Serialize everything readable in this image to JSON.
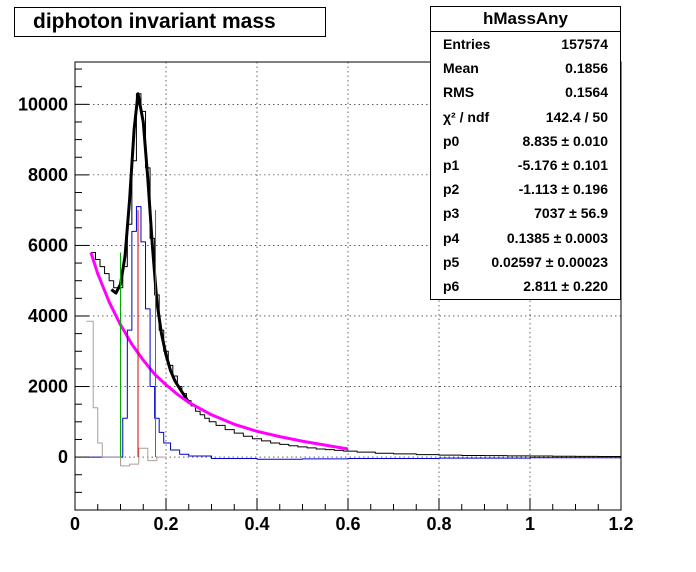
{
  "title": "diphoton invariant mass",
  "stats": {
    "name": "hMassAny",
    "rows": [
      {
        "label": "Entries",
        "value": "157574"
      },
      {
        "label": "Mean",
        "value": "0.1856"
      },
      {
        "label": "RMS",
        "value": "0.1564"
      },
      {
        "label": "χ² / ndf",
        "value": "142.4 / 50"
      },
      {
        "label": "p0",
        "value": "8.835 ± 0.010"
      },
      {
        "label": "p1",
        "value": "-5.176 ± 0.101"
      },
      {
        "label": "p2",
        "value": "-1.113 ± 0.196"
      },
      {
        "label": "p3",
        "value": "7037 ± 56.9"
      },
      {
        "label": "p4",
        "value": "0.1385 ± 0.0003"
      },
      {
        "label": "p5",
        "value": "0.02597 ± 0.00023"
      },
      {
        "label": "p6",
        "value": "2.811 ± 0.220"
      }
    ]
  },
  "chart_data": {
    "type": "line",
    "title": "diphoton invariant mass",
    "xlim": [
      0,
      1.2
    ],
    "ylim": [
      -1500,
      11200
    ],
    "grid": true,
    "x_ticks": [
      0,
      0.2,
      0.4,
      0.6,
      0.8,
      1,
      1.2
    ],
    "x_tick_labels": [
      "0",
      "0.2",
      "0.4",
      "0.6",
      "0.8",
      "1",
      "1.2"
    ],
    "y_ticks": [
      0,
      2000,
      4000,
      6000,
      8000,
      10000
    ],
    "y_tick_labels": [
      "0",
      "2000",
      "4000",
      "6000",
      "8000",
      "10000"
    ],
    "colors": {
      "histogram": "#000000",
      "fit": "#000000",
      "background": "#ff00ff",
      "blue": "#0000cc",
      "gray": "#b09c96",
      "green": "#00aa00",
      "red": "#dd0000"
    },
    "series": [
      {
        "key": "histogram",
        "x": [
          0.035,
          0.045,
          0.055,
          0.065,
          0.075,
          0.085,
          0.095,
          0.105,
          0.115,
          0.125,
          0.135,
          0.145,
          0.155,
          0.165,
          0.175,
          0.185,
          0.195,
          0.205,
          0.215,
          0.225,
          0.235,
          0.245,
          0.255,
          0.265,
          0.275,
          0.285,
          0.295,
          0.31,
          0.33,
          0.35,
          0.37,
          0.39,
          0.41,
          0.43,
          0.45,
          0.47,
          0.49,
          0.51,
          0.53,
          0.55,
          0.57,
          0.59,
          0.62,
          0.66,
          0.7,
          0.75,
          0.8,
          0.85,
          0.9,
          0.95,
          1.0,
          1.05,
          1.1,
          1.15,
          1.2
        ],
        "y": [
          5800,
          5600,
          5400,
          5200,
          5000,
          4800,
          4800,
          5400,
          6600,
          8400,
          10300,
          9800,
          8200,
          6200,
          4600,
          3600,
          3000,
          2600,
          2300,
          2000,
          1800,
          1600,
          1450,
          1300,
          1200,
          1100,
          1000,
          900,
          780,
          680,
          590,
          520,
          460,
          400,
          360,
          320,
          290,
          260,
          230,
          210,
          190,
          170,
          140,
          110,
          90,
          70,
          55,
          45,
          40,
          35,
          30,
          25,
          20,
          15,
          10
        ]
      },
      {
        "key": "fit",
        "x": [
          0.08,
          0.09,
          0.1,
          0.11,
          0.12,
          0.13,
          0.1385,
          0.15,
          0.16,
          0.17,
          0.18,
          0.19,
          0.2,
          0.21,
          0.22,
          0.23,
          0.24,
          0.25
        ],
        "y": [
          4750,
          4650,
          4900,
          5700,
          7300,
          9300,
          10300,
          9500,
          7900,
          6000,
          4400,
          3500,
          2900,
          2450,
          2150,
          1950,
          1750,
          1550
        ]
      },
      {
        "key": "background",
        "x": [
          0.035,
          0.05,
          0.075,
          0.1,
          0.125,
          0.15,
          0.175,
          0.2,
          0.225,
          0.25,
          0.3,
          0.35,
          0.4,
          0.45,
          0.5,
          0.55,
          0.6
        ],
        "y": [
          5800,
          5200,
          4400,
          3750,
          3200,
          2750,
          2350,
          2050,
          1780,
          1550,
          1200,
          930,
          730,
          580,
          450,
          340,
          230
        ]
      },
      {
        "key": "blue",
        "x": [
          0.03,
          0.05,
          0.07,
          0.09,
          0.105,
          0.115,
          0.125,
          0.135,
          0.145,
          0.155,
          0.165,
          0.175,
          0.185,
          0.195,
          0.21,
          0.23,
          0.25,
          0.3,
          0.4,
          0.5,
          0.6,
          0.8,
          1.0,
          1.2
        ],
        "y": [
          0,
          0,
          0,
          0,
          1100,
          3600,
          6400,
          7100,
          6100,
          4200,
          2000,
          1100,
          700,
          400,
          200,
          80,
          30,
          -40,
          -60,
          -50,
          -40,
          -30,
          -20,
          0
        ]
      },
      {
        "key": "gray",
        "x": [
          0.025,
          0.033,
          0.04,
          0.05,
          0.06,
          0.08,
          0.1,
          0.12,
          0.14,
          0.16,
          0.18,
          0.2
        ],
        "y": [
          3850,
          3850,
          1400,
          400,
          0,
          0,
          -250,
          -200,
          250,
          -100,
          0,
          0
        ]
      }
    ],
    "markers": [
      {
        "key": "green",
        "x": 0.1,
        "y": 5800
      },
      {
        "key": "red",
        "x": 0.1385,
        "y": 7000
      },
      {
        "key": "green",
        "x": 0.177,
        "y": 7000
      }
    ]
  }
}
